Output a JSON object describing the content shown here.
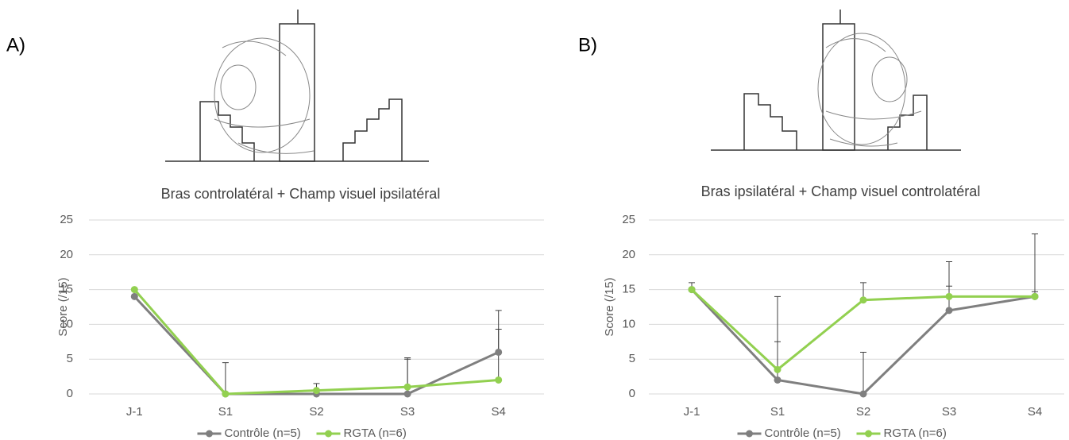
{
  "panels": [
    {
      "label": "A)"
    },
    {
      "label": "B)"
    }
  ],
  "chart_data": [
    {
      "type": "line",
      "title": "Bras controlatéral + Champ visuel ipsilatéral",
      "y_label": "Score (/15)",
      "categories": [
        "J-1",
        "S1",
        "S2",
        "S3",
        "S4"
      ],
      "series": [
        {
          "name": "Contrôle (n=5)",
          "color": "#7f7f7f",
          "values": [
            14,
            0,
            0,
            0,
            6
          ],
          "errors": [
            0,
            4.5,
            0,
            5.2,
            6
          ]
        },
        {
          "name": "RGTA (n=6)",
          "color": "#92d050",
          "values": [
            15,
            0,
            0.5,
            1,
            2
          ],
          "errors": [
            0,
            0,
            1,
            4,
            7.3
          ]
        }
      ],
      "ylim": [
        0,
        25
      ],
      "yticks": [
        0,
        5,
        10,
        15,
        20,
        25
      ],
      "grid": true
    },
    {
      "type": "line",
      "title": "Bras ipsilatéral + Champ visuel controlatéral",
      "y_label": "Score (/15)",
      "categories": [
        "J-1",
        "S1",
        "S2",
        "S3",
        "S4"
      ],
      "series": [
        {
          "name": "Contrôle (n=5)",
          "color": "#7f7f7f",
          "values": [
            15,
            2,
            0,
            12,
            14
          ],
          "errors": [
            1,
            5.5,
            6,
            3.5,
            0.7
          ]
        },
        {
          "name": "RGTA (n=6)",
          "color": "#92d050",
          "values": [
            15,
            3.5,
            13.5,
            14,
            14
          ],
          "errors": [
            0,
            10.5,
            2.5,
            5,
            9
          ]
        }
      ],
      "ylim": [
        0,
        25
      ],
      "yticks": [
        0,
        5,
        10,
        15,
        20,
        25
      ],
      "grid": true
    }
  ]
}
